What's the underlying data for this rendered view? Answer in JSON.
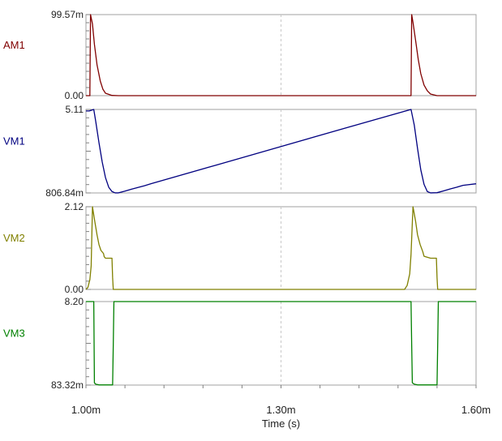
{
  "x_axis": {
    "title": "Time (s)",
    "tick_labels": [
      "1.00m",
      "1.30m",
      "1.60m"
    ]
  },
  "colors": {
    "AM1": "#800000",
    "VM1": "#000080",
    "VM2": "#808000",
    "VM3": "#008000",
    "frame": "#a0a0a0",
    "grid": "#c8c8c8"
  },
  "chart_data": [
    {
      "type": "line",
      "series": [
        {
          "name": "AM1",
          "x": [
            1.0,
            1.006,
            1.007,
            1.01,
            1.013,
            1.017,
            1.022,
            1.026,
            1.03,
            1.04,
            1.05,
            1.5,
            1.501,
            1.503,
            1.507,
            1.511,
            1.515,
            1.52,
            1.525,
            1.53,
            1.54,
            1.6
          ],
          "y": [
            0,
            0,
            99.57,
            88,
            63,
            38,
            18,
            8,
            3,
            0.3,
            0,
            0,
            99.57,
            90,
            68,
            45,
            27,
            13,
            6,
            2,
            0,
            0
          ]
        }
      ],
      "title": "",
      "xlabel": "Time (s)",
      "ylabel": "AM1",
      "xlim": [
        1.0,
        1.6
      ],
      "ylim": [
        0,
        99.57
      ],
      "ytick_labels": [
        "0.00",
        "99.57m"
      ],
      "grid": true
    },
    {
      "type": "line",
      "series": [
        {
          "name": "VM1",
          "x": [
            1.0,
            1.005,
            1.012,
            1.015,
            1.02,
            1.025,
            1.03,
            1.035,
            1.04,
            1.045,
            1.05,
            1.06,
            1.07,
            1.08,
            1.09,
            1.1,
            1.2,
            1.3,
            1.4,
            1.5,
            1.505,
            1.51,
            1.515,
            1.52,
            1.525,
            1.53,
            1.54,
            1.55,
            1.56,
            1.57,
            1.58,
            1.6
          ],
          "y": [
            5.03,
            5.03,
            5.11,
            4.5,
            3.4,
            2.4,
            1.6,
            1.1,
            0.88,
            0.81,
            0.81,
            0.9,
            1.0,
            1.09,
            1.18,
            1.28,
            2.24,
            3.2,
            4.16,
            5.11,
            4.3,
            3.1,
            2.0,
            1.25,
            0.88,
            0.81,
            0.82,
            0.91,
            1.01,
            1.1,
            1.2,
            1.28
          ]
        }
      ],
      "title": "",
      "xlabel": "Time (s)",
      "ylabel": "VM1",
      "xlim": [
        1.0,
        1.6
      ],
      "ylim": [
        0.80684,
        5.11
      ],
      "ytick_labels": [
        "806.84m",
        "5.11"
      ],
      "grid": true
    },
    {
      "type": "line",
      "series": [
        {
          "name": "VM2",
          "x": [
            1.0,
            1.003,
            1.006,
            1.008,
            1.01,
            1.013,
            1.017,
            1.02,
            1.023,
            1.027,
            1.028,
            1.03,
            1.04,
            1.041,
            1.042,
            1.055,
            1.49,
            1.494,
            1.498,
            1.5,
            1.503,
            1.507,
            1.51,
            1.514,
            1.518,
            1.52,
            1.53,
            1.539,
            1.54,
            1.541,
            1.6
          ],
          "y": [
            0,
            0.05,
            0.25,
            0.6,
            2.12,
            1.8,
            1.4,
            1.15,
            1.0,
            0.92,
            0.84,
            0.8,
            0.8,
            0.3,
            0,
            0,
            0,
            0.1,
            0.4,
            0.9,
            2.12,
            1.75,
            1.4,
            1.15,
            0.97,
            0.85,
            0.8,
            0.8,
            0.3,
            0,
            0
          ]
        }
      ],
      "title": "",
      "xlabel": "Time (s)",
      "ylabel": "VM2",
      "xlim": [
        1.0,
        1.6
      ],
      "ylim": [
        0,
        2.12
      ],
      "ytick_labels": [
        "0.00",
        "2.12"
      ],
      "grid": true
    },
    {
      "type": "line",
      "series": [
        {
          "name": "VM3",
          "x": [
            1.0,
            1.012,
            1.013,
            1.015,
            1.02,
            1.041,
            1.042,
            1.043,
            1.5,
            1.501,
            1.502,
            1.505,
            1.51,
            1.54,
            1.541,
            1.542,
            1.6
          ],
          "y": [
            8.2,
            8.2,
            0.3,
            0.17,
            0.1,
            0.1,
            4.0,
            8.2,
            8.2,
            4.0,
            0.3,
            0.17,
            0.1,
            0.1,
            4.0,
            8.2,
            8.2
          ]
        }
      ],
      "title": "",
      "xlabel": "Time (s)",
      "ylabel": "VM3",
      "xlim": [
        1.0,
        1.6
      ],
      "ylim": [
        0.08332,
        8.2
      ],
      "ytick_labels": [
        "83.32m",
        "8.20"
      ],
      "grid": true
    }
  ]
}
